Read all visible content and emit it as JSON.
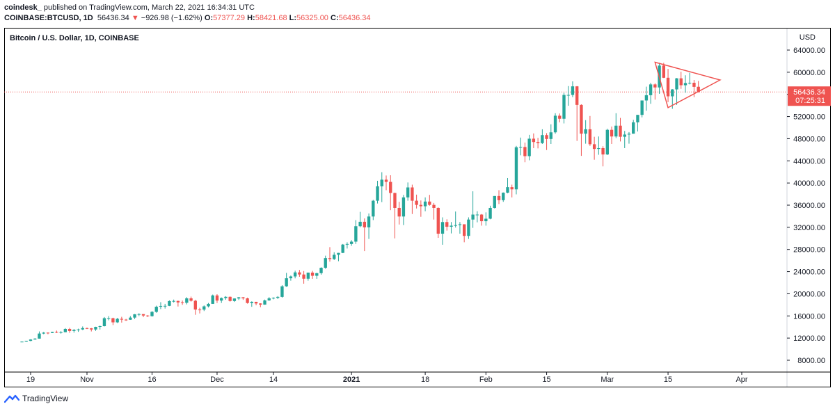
{
  "header": {
    "publisher": "coindesk_",
    "published": "published on TradingView.com, March 22, 2021 16:34:31 UTC",
    "symbol": "COINBASE:BTCUSD, 1D",
    "last": "56436.34",
    "change": "−926.98 (−1.62%)",
    "o_label": "O:",
    "o_val": "57377.29",
    "h_label": "H:",
    "h_val": "58421.68",
    "l_label": "L:",
    "l_val": "56325.00",
    "c_label": "C:",
    "c_val": "56436.34"
  },
  "footer": {
    "brand": "TradingView"
  },
  "colors": {
    "up": "#26a69a",
    "down": "#ef5350",
    "pattern": "#ef5350"
  },
  "chart_data": {
    "type": "candlestick",
    "title": "Bitcoin / U.S. Dollar, 1D, COINBASE",
    "currency": "USD",
    "ylim": [
      5000,
      66000
    ],
    "yticks": [
      8000,
      12000,
      16000,
      20000,
      24000,
      28000,
      32000,
      36000,
      40000,
      44000,
      48000,
      52000,
      56000,
      60000,
      64000
    ],
    "x_start": "2020-10-17",
    "x_end": "2021-04-11",
    "x_ticks": [
      {
        "date": "2020-10-19",
        "label": "19"
      },
      {
        "date": "2020-11-01",
        "label": "Nov"
      },
      {
        "date": "2020-11-16",
        "label": "16"
      },
      {
        "date": "2020-12-01",
        "label": "Dec"
      },
      {
        "date": "2020-12-14",
        "label": "14"
      },
      {
        "date": "2021-01-01",
        "label": "2021"
      },
      {
        "date": "2021-01-18",
        "label": "18"
      },
      {
        "date": "2021-02-01",
        "label": "Feb"
      },
      {
        "date": "2021-02-15",
        "label": "15"
      },
      {
        "date": "2021-03-01",
        "label": "Mar"
      },
      {
        "date": "2021-03-15",
        "label": "15"
      },
      {
        "date": "2021-04-01",
        "label": "Apr"
      }
    ],
    "current_price": {
      "value": 56436.34,
      "label": "56436.34",
      "countdown": "07:25:31"
    },
    "pattern": {
      "type": "symmetrical triangle",
      "points": [
        [
          "2021-03-12",
          61800
        ],
        [
          "2021-03-27",
          58600
        ],
        [
          "2021-03-15",
          53600
        ]
      ]
    },
    "candles": [
      [
        "2020-10-17",
        11320,
        11380,
        11250,
        11360
      ],
      [
        "2020-10-18",
        11360,
        11500,
        11320,
        11500
      ],
      [
        "2020-10-19",
        11500,
        11800,
        11420,
        11740
      ],
      [
        "2020-10-20",
        11740,
        12000,
        11700,
        11900
      ],
      [
        "2020-10-21",
        11900,
        13200,
        11890,
        12820
      ],
      [
        "2020-10-22",
        12820,
        13100,
        12700,
        12980
      ],
      [
        "2020-10-23",
        12980,
        13020,
        12700,
        12930
      ],
      [
        "2020-10-24",
        12930,
        13150,
        12900,
        13120
      ],
      [
        "2020-10-25",
        13120,
        13350,
        12900,
        13040
      ],
      [
        "2020-10-26",
        13040,
        13250,
        12800,
        13060
      ],
      [
        "2020-10-27",
        13060,
        13800,
        13050,
        13650
      ],
      [
        "2020-10-28",
        13650,
        13850,
        12950,
        13280
      ],
      [
        "2020-10-29",
        13280,
        13650,
        12980,
        13460
      ],
      [
        "2020-10-30",
        13460,
        13700,
        13130,
        13560
      ],
      [
        "2020-10-31",
        13560,
        14100,
        13440,
        13800
      ],
      [
        "2020-11-01",
        13800,
        13900,
        13620,
        13760
      ],
      [
        "2020-11-02",
        13760,
        13820,
        13200,
        13550
      ],
      [
        "2020-11-03",
        13550,
        14050,
        13300,
        14030
      ],
      [
        "2020-11-04",
        14030,
        14250,
        13540,
        14150
      ],
      [
        "2020-11-05",
        14150,
        15800,
        14100,
        15590
      ],
      [
        "2020-11-06",
        15590,
        15970,
        15200,
        15590
      ],
      [
        "2020-11-07",
        15590,
        15680,
        14350,
        14840
      ],
      [
        "2020-11-08",
        14840,
        15650,
        14720,
        15480
      ],
      [
        "2020-11-09",
        15480,
        15840,
        14800,
        15330
      ],
      [
        "2020-11-10",
        15330,
        15460,
        15100,
        15310
      ],
      [
        "2020-11-11",
        15310,
        15970,
        15280,
        15700
      ],
      [
        "2020-11-12",
        15700,
        16340,
        15440,
        16300
      ],
      [
        "2020-11-13",
        16300,
        16480,
        15960,
        16330
      ],
      [
        "2020-11-14",
        16330,
        16330,
        15780,
        16070
      ],
      [
        "2020-11-15",
        16070,
        16150,
        15800,
        15960
      ],
      [
        "2020-11-16",
        15960,
        16880,
        15870,
        16730
      ],
      [
        "2020-11-17",
        16730,
        17850,
        16570,
        17660
      ],
      [
        "2020-11-18",
        17660,
        18480,
        17230,
        17800
      ],
      [
        "2020-11-19",
        17800,
        18180,
        17330,
        17820
      ],
      [
        "2020-11-20",
        17820,
        18800,
        17770,
        18680
      ],
      [
        "2020-11-21",
        18680,
        18950,
        18420,
        18710
      ],
      [
        "2020-11-22",
        18710,
        18760,
        17700,
        18430
      ],
      [
        "2020-11-23",
        18430,
        18770,
        18000,
        18370
      ],
      [
        "2020-11-24",
        18370,
        19390,
        18080,
        19170
      ],
      [
        "2020-11-25",
        19170,
        19490,
        18580,
        18740
      ],
      [
        "2020-11-26",
        18740,
        18920,
        16200,
        17150
      ],
      [
        "2020-11-27",
        17150,
        17470,
        16450,
        17140
      ],
      [
        "2020-11-28",
        17140,
        17900,
        16880,
        17730
      ],
      [
        "2020-11-29",
        17730,
        18350,
        17530,
        18180
      ],
      [
        "2020-11-30",
        18180,
        19860,
        18180,
        19700
      ],
      [
        "2020-12-01",
        19700,
        19920,
        18330,
        18770
      ],
      [
        "2020-12-02",
        18770,
        19340,
        18340,
        19220
      ],
      [
        "2020-12-03",
        19220,
        19570,
        18920,
        19450
      ],
      [
        "2020-12-04",
        19450,
        19520,
        18580,
        18700
      ],
      [
        "2020-12-05",
        18700,
        19170,
        18530,
        19150
      ],
      [
        "2020-12-06",
        19150,
        19420,
        18880,
        19360
      ],
      [
        "2020-12-07",
        19360,
        19420,
        18900,
        19170
      ],
      [
        "2020-12-08",
        19170,
        19300,
        18220,
        18330
      ],
      [
        "2020-12-09",
        18330,
        18640,
        17650,
        18550
      ],
      [
        "2020-12-10",
        18550,
        18560,
        17920,
        18250
      ],
      [
        "2020-12-11",
        18250,
        18290,
        17570,
        18040
      ],
      [
        "2020-12-12",
        18040,
        18950,
        18020,
        18800
      ],
      [
        "2020-12-13",
        18800,
        19410,
        18730,
        19170
      ],
      [
        "2020-12-14",
        19170,
        19350,
        19000,
        19270
      ],
      [
        "2020-12-15",
        19270,
        19570,
        19060,
        19440
      ],
      [
        "2020-12-16",
        19440,
        21550,
        19300,
        21350
      ],
      [
        "2020-12-17",
        21350,
        23770,
        21240,
        22800
      ],
      [
        "2020-12-18",
        22800,
        23290,
        22360,
        23130
      ],
      [
        "2020-12-19",
        23130,
        24170,
        22780,
        23860
      ],
      [
        "2020-12-20",
        23860,
        24300,
        23070,
        23480
      ],
      [
        "2020-12-21",
        23480,
        24100,
        21820,
        22720
      ],
      [
        "2020-12-22",
        22720,
        23830,
        22360,
        23820
      ],
      [
        "2020-12-23",
        23820,
        24130,
        22700,
        23250
      ],
      [
        "2020-12-24",
        23250,
        23790,
        22700,
        23720
      ],
      [
        "2020-12-25",
        23720,
        24780,
        23450,
        24690
      ],
      [
        "2020-12-26",
        24690,
        26880,
        24510,
        26440
      ],
      [
        "2020-12-27",
        26440,
        28420,
        25800,
        26270
      ],
      [
        "2020-12-28",
        26270,
        27500,
        26100,
        27040
      ],
      [
        "2020-12-29",
        27040,
        27390,
        25880,
        27380
      ],
      [
        "2020-12-30",
        27380,
        28990,
        27330,
        28880
      ],
      [
        "2020-12-31",
        28880,
        29300,
        28170,
        28990
      ],
      [
        "2021-01-01",
        28990,
        29680,
        28660,
        29410
      ],
      [
        "2021-01-02",
        29410,
        33300,
        29000,
        32200
      ],
      [
        "2021-01-03",
        32200,
        34790,
        32000,
        33000
      ],
      [
        "2021-01-04",
        33000,
        33600,
        27700,
        31990
      ],
      [
        "2021-01-05",
        31990,
        34500,
        29900,
        33950
      ],
      [
        "2021-01-06",
        33950,
        36950,
        33300,
        36800
      ],
      [
        "2021-01-07",
        36800,
        40400,
        36300,
        39400
      ],
      [
        "2021-01-08",
        39400,
        41950,
        36550,
        40600
      ],
      [
        "2021-01-09",
        40600,
        41350,
        38700,
        40200
      ],
      [
        "2021-01-10",
        40200,
        41400,
        35100,
        38200
      ],
      [
        "2021-01-11",
        38200,
        38250,
        30000,
        35500
      ],
      [
        "2021-01-12",
        35500,
        36600,
        32500,
        33950
      ],
      [
        "2021-01-13",
        33950,
        37850,
        32400,
        37400
      ],
      [
        "2021-01-14",
        37400,
        40100,
        36800,
        39200
      ],
      [
        "2021-01-15",
        39200,
        39700,
        34400,
        36800
      ],
      [
        "2021-01-16",
        36800,
        37900,
        35400,
        36050
      ],
      [
        "2021-01-17",
        36050,
        36850,
        33900,
        35800
      ],
      [
        "2021-01-18",
        35800,
        37400,
        34900,
        36650
      ],
      [
        "2021-01-19",
        36650,
        37850,
        35900,
        36050
      ],
      [
        "2021-01-20",
        36050,
        36400,
        33400,
        35500
      ],
      [
        "2021-01-21",
        35500,
        35600,
        30100,
        30850
      ],
      [
        "2021-01-22",
        30850,
        33800,
        28850,
        32950
      ],
      [
        "2021-01-23",
        32950,
        33450,
        31400,
        32100
      ],
      [
        "2021-01-24",
        32100,
        32950,
        30900,
        32300
      ],
      [
        "2021-01-25",
        32300,
        34850,
        31950,
        32400
      ],
      [
        "2021-01-26",
        32400,
        32950,
        30850,
        32550
      ],
      [
        "2021-01-27",
        32550,
        32550,
        29300,
        30450
      ],
      [
        "2021-01-28",
        30450,
        33800,
        29900,
        33400
      ],
      [
        "2021-01-29",
        33400,
        38500,
        31900,
        34300
      ],
      [
        "2021-01-30",
        34300,
        34900,
        32900,
        34300
      ],
      [
        "2021-01-31",
        34300,
        34400,
        32300,
        33100
      ],
      [
        "2021-02-01",
        33100,
        34700,
        32300,
        33550
      ],
      [
        "2021-02-02",
        33550,
        35900,
        33450,
        35500
      ],
      [
        "2021-02-03",
        35500,
        37650,
        35400,
        37650
      ],
      [
        "2021-02-04",
        37650,
        38700,
        36200,
        36900
      ],
      [
        "2021-02-05",
        36900,
        38300,
        36600,
        38250
      ],
      [
        "2021-02-06",
        38250,
        40900,
        38150,
        39250
      ],
      [
        "2021-02-07",
        39250,
        39700,
        37400,
        38850
      ],
      [
        "2021-02-08",
        38850,
        46700,
        37950,
        46450
      ],
      [
        "2021-02-09",
        46450,
        48200,
        45000,
        46500
      ],
      [
        "2021-02-10",
        46500,
        47300,
        43750,
        44850
      ],
      [
        "2021-02-11",
        44850,
        48700,
        44100,
        48000
      ],
      [
        "2021-02-12",
        48000,
        48950,
        46300,
        47400
      ],
      [
        "2021-02-13",
        47400,
        48150,
        46250,
        47200
      ],
      [
        "2021-02-14",
        47200,
        49700,
        47050,
        48650
      ],
      [
        "2021-02-15",
        48650,
        49000,
        45950,
        47950
      ],
      [
        "2021-02-16",
        47950,
        50600,
        47050,
        49150
      ],
      [
        "2021-02-17",
        49150,
        52600,
        48900,
        52150
      ],
      [
        "2021-02-18",
        52150,
        52550,
        50950,
        51600
      ],
      [
        "2021-02-19",
        51600,
        56300,
        50750,
        55900
      ],
      [
        "2021-02-20",
        55900,
        57500,
        53950,
        55900
      ],
      [
        "2021-02-21",
        55900,
        58350,
        55500,
        57450
      ],
      [
        "2021-02-22",
        57450,
        57500,
        47600,
        54100
      ],
      [
        "2021-02-23",
        54100,
        54200,
        44900,
        48900
      ],
      [
        "2021-02-24",
        48900,
        51350,
        47100,
        49700
      ],
      [
        "2021-02-25",
        49700,
        52100,
        46700,
        47000
      ],
      [
        "2021-02-26",
        47000,
        48350,
        44200,
        46150
      ],
      [
        "2021-02-27",
        46150,
        48400,
        45100,
        46300
      ],
      [
        "2021-02-28",
        46300,
        46650,
        43000,
        45150
      ],
      [
        "2021-03-01",
        45150,
        49800,
        45050,
        49600
      ],
      [
        "2021-03-02",
        49600,
        50200,
        47050,
        48400
      ],
      [
        "2021-03-03",
        48400,
        52600,
        48100,
        50350
      ],
      [
        "2021-03-04",
        50350,
        51750,
        47500,
        48350
      ],
      [
        "2021-03-05",
        48350,
        49400,
        46300,
        48750
      ],
      [
        "2021-03-06",
        48750,
        49200,
        47100,
        48900
      ],
      [
        "2021-03-07",
        48900,
        51400,
        48900,
        50950
      ],
      [
        "2021-03-08",
        50950,
        52300,
        49300,
        52300
      ],
      [
        "2021-03-09",
        52300,
        54900,
        51850,
        54900
      ],
      [
        "2021-03-10",
        54900,
        57400,
        53050,
        55850
      ],
      [
        "2021-03-11",
        55850,
        58100,
        54300,
        57800
      ],
      [
        "2021-03-12",
        57800,
        58000,
        55050,
        57250
      ],
      [
        "2021-03-13",
        57250,
        61700,
        56100,
        61200
      ],
      [
        "2021-03-14",
        61200,
        61700,
        58950,
        59000
      ],
      [
        "2021-03-15",
        59000,
        60600,
        54600,
        55650
      ],
      [
        "2021-03-16",
        55650,
        56950,
        53400,
        56900
      ],
      [
        "2021-03-17",
        56900,
        58950,
        54100,
        58900
      ],
      [
        "2021-03-18",
        58900,
        60100,
        57000,
        57650
      ],
      [
        "2021-03-19",
        57650,
        59450,
        56300,
        58050
      ],
      [
        "2021-03-20",
        58050,
        59900,
        57800,
        58100
      ],
      [
        "2021-03-21",
        58100,
        58600,
        55500,
        57360
      ],
      [
        "2021-03-22",
        57377,
        58422,
        56325,
        56436
      ]
    ]
  }
}
